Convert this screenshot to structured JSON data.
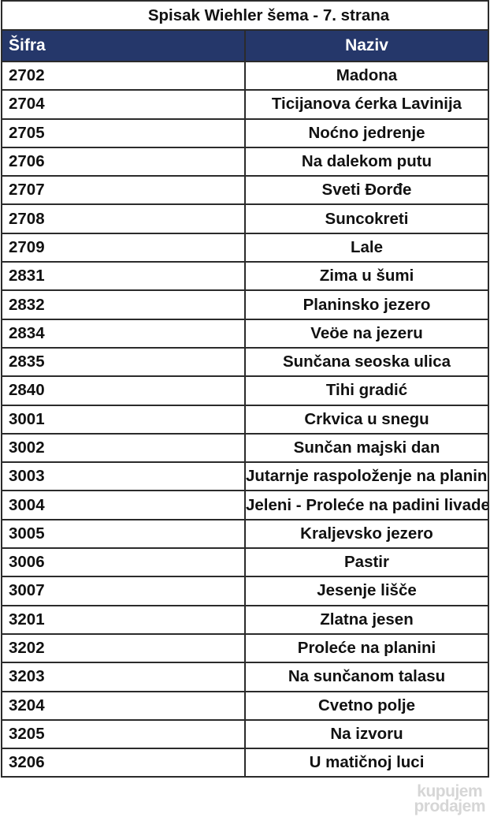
{
  "title": "Spisak Wiehler šema - 7. strana",
  "columns": {
    "code": "Šifra",
    "name": "Naziv"
  },
  "colors": {
    "header_bg": "#25376a",
    "header_text": "#ffffff",
    "border": "#2b2b2b"
  },
  "rows": [
    {
      "code": "2702",
      "name": "Madona"
    },
    {
      "code": "2704",
      "name": "Ticijanova ćerka Lavinija"
    },
    {
      "code": "2705",
      "name": "Noćno jedrenje"
    },
    {
      "code": "2706",
      "name": "Na dalekom putu"
    },
    {
      "code": "2707",
      "name": "Sveti Đorđe"
    },
    {
      "code": "2708",
      "name": "Suncokreti"
    },
    {
      "code": "2709",
      "name": "Lale"
    },
    {
      "code": "2831",
      "name": "Zima u šumi"
    },
    {
      "code": "2832",
      "name": "Planinsko jezero"
    },
    {
      "code": "2834",
      "name": "Veöe na jezeru"
    },
    {
      "code": "2835",
      "name": "Sunčana seoska ulica"
    },
    {
      "code": "2840",
      "name": "Tihi gradić"
    },
    {
      "code": "3001",
      "name": "Crkvica u snegu"
    },
    {
      "code": "3002",
      "name": "Sunčan majski dan"
    },
    {
      "code": "3003",
      "name": "Jutarnje raspoloženje na planinskom jezeru"
    },
    {
      "code": "3004",
      "name": "Jeleni - Proleće na padini livade"
    },
    {
      "code": "3005",
      "name": "Kraljevsko jezero"
    },
    {
      "code": "3006",
      "name": "Pastir"
    },
    {
      "code": "3007",
      "name": "Jesenje lišče"
    },
    {
      "code": "3201",
      "name": "Zlatna jesen"
    },
    {
      "code": "3202",
      "name": "Proleće na planini"
    },
    {
      "code": "3203",
      "name": "Na sunčanom talasu"
    },
    {
      "code": "3204",
      "name": "Cvetno polje"
    },
    {
      "code": "3205",
      "name": "Na izvoru"
    },
    {
      "code": "3206",
      "name": "U matičnoj luci"
    }
  ],
  "watermark": {
    "line1": "kupujem",
    "line2": "prodajem"
  }
}
